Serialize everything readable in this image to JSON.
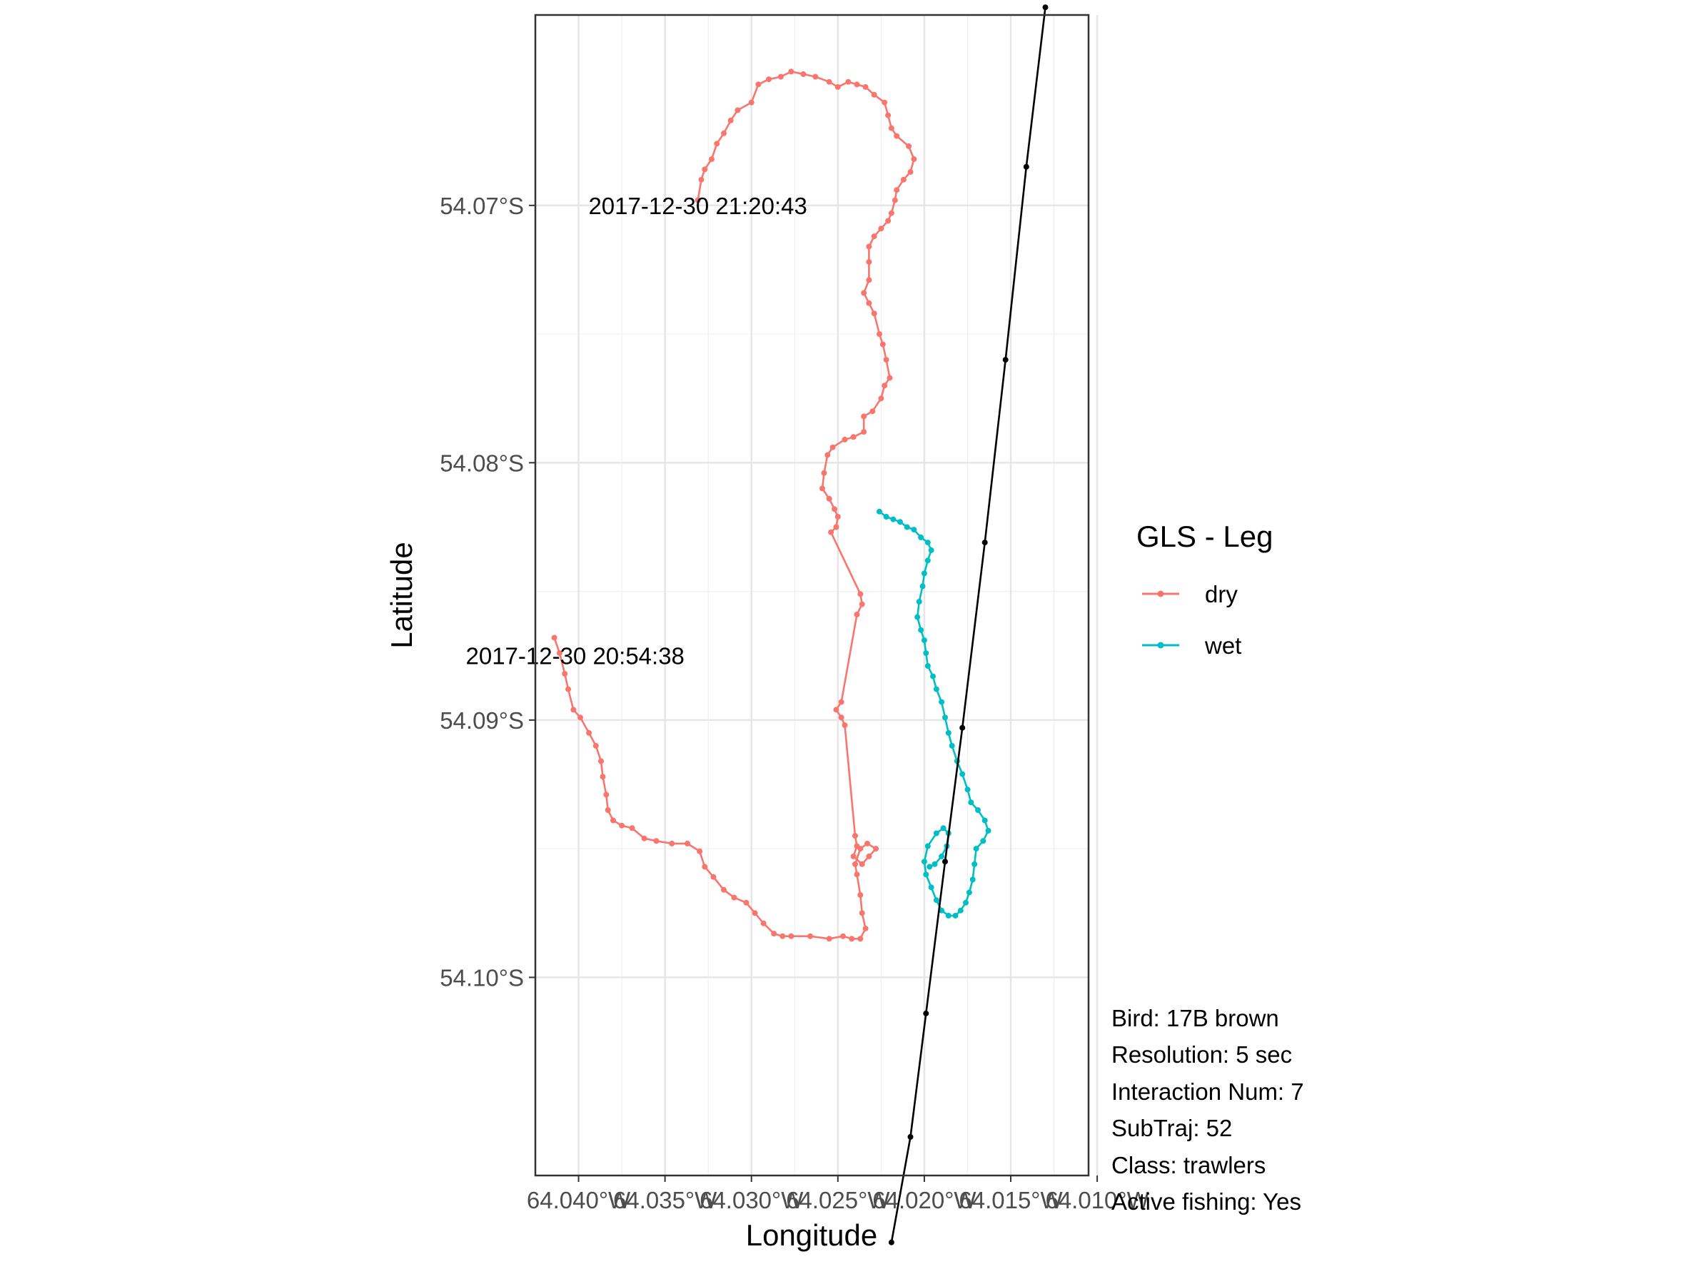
{
  "chart_data": {
    "type": "line",
    "xlabel": "Longitude",
    "ylabel": "Latitude",
    "xlim": [
      -64.0425,
      -64.0105
    ],
    "ylim": [
      -54.1077,
      -54.0626
    ],
    "x_ticks": [
      -64.04,
      -64.035,
      -64.03,
      -64.025,
      -64.02,
      -64.015,
      -64.01
    ],
    "x_tick_labels": [
      "64.040°W",
      "64.035°W",
      "64.030°W",
      "64.025°W",
      "64.020°W",
      "64.015°W",
      "64.010°W"
    ],
    "y_ticks": [
      -54.07,
      -54.08,
      -54.09,
      -54.1
    ],
    "y_tick_labels": [
      "54.07°S",
      "54.08°S",
      "54.09°S",
      "54.10°S"
    ],
    "grid": true,
    "legend": {
      "title": "GLS - Leg",
      "position": "right",
      "entries": [
        {
          "label": "dry",
          "color": "#F8766D"
        },
        {
          "label": "wet",
          "color": "#00BFC4"
        }
      ]
    },
    "annotations": [
      {
        "text": "2017-12-30 21:20:43",
        "x": -64.0331,
        "y": -54.07
      },
      {
        "text": "2017-12-30 20:54:38",
        "x": -64.0402,
        "y": -54.0875
      }
    ],
    "series": [
      {
        "name": "dry",
        "color": "#F8766D",
        "points": [
          [
            -64.0414,
            -54.0868
          ],
          [
            -64.0411,
            -54.0874
          ],
          [
            -64.0408,
            -54.0882
          ],
          [
            -64.0406,
            -54.0888
          ],
          [
            -64.0403,
            -54.0896
          ],
          [
            -64.0399,
            -54.0899
          ],
          [
            -64.0394,
            -54.0905
          ],
          [
            -64.039,
            -54.091
          ],
          [
            -64.0387,
            -54.0916
          ],
          [
            -64.0386,
            -54.0922
          ],
          [
            -64.0384,
            -54.0929
          ],
          [
            -64.0383,
            -54.0935
          ],
          [
            -64.038,
            -54.0939
          ],
          [
            -64.0375,
            -54.0941
          ],
          [
            -64.0369,
            -54.0942
          ],
          [
            -64.0362,
            -54.0946
          ],
          [
            -64.0355,
            -54.0947
          ],
          [
            -64.0346,
            -54.0948
          ],
          [
            -64.0337,
            -54.0948
          ],
          [
            -64.033,
            -54.0951
          ],
          [
            -64.0327,
            -54.0957
          ],
          [
            -64.0322,
            -54.0961
          ],
          [
            -64.0316,
            -54.0966
          ],
          [
            -64.031,
            -54.0969
          ],
          [
            -64.0303,
            -54.0971
          ],
          [
            -64.0298,
            -54.0975
          ],
          [
            -64.0293,
            -54.0979
          ],
          [
            -64.0287,
            -54.0983
          ],
          [
            -64.0282,
            -54.0984
          ],
          [
            -64.0277,
            -54.0984
          ],
          [
            -64.0266,
            -54.0984
          ],
          [
            -64.0255,
            -54.0985
          ],
          [
            -64.0247,
            -54.0984
          ],
          [
            -64.0242,
            -54.0985
          ],
          [
            -64.0237,
            -54.0985
          ],
          [
            -64.0234,
            -54.0981
          ],
          [
            -64.0236,
            -54.0975
          ],
          [
            -64.0237,
            -54.0968
          ],
          [
            -64.0239,
            -54.096
          ],
          [
            -64.024,
            -54.0956
          ],
          [
            -64.0237,
            -54.095
          ],
          [
            -64.0233,
            -54.0948
          ],
          [
            -64.0228,
            -54.095
          ],
          [
            -64.0232,
            -54.0953
          ],
          [
            -64.0236,
            -54.0956
          ],
          [
            -64.0241,
            -54.0953
          ],
          [
            -64.0239,
            -54.0949
          ],
          [
            -64.024,
            -54.0945
          ],
          [
            -64.0246,
            -54.0902
          ],
          [
            -64.0248,
            -54.0899
          ],
          [
            -64.0251,
            -54.0896
          ],
          [
            -64.0248,
            -54.0893
          ],
          [
            -64.0239,
            -54.0859
          ],
          [
            -64.0236,
            -54.0855
          ],
          [
            -64.0237,
            -54.0851
          ],
          [
            -64.0254,
            -54.0827
          ],
          [
            -64.0251,
            -54.0825
          ],
          [
            -64.025,
            -54.0821
          ],
          [
            -64.0252,
            -54.0818
          ],
          [
            -64.0255,
            -54.0814
          ],
          [
            -64.0259,
            -54.081
          ],
          [
            -64.0258,
            -54.0804
          ],
          [
            -64.0256,
            -54.0797
          ],
          [
            -64.0253,
            -54.0794
          ],
          [
            -64.0246,
            -54.0791
          ],
          [
            -64.0241,
            -54.079
          ],
          [
            -64.0235,
            -54.0788
          ],
          [
            -64.0235,
            -54.0782
          ],
          [
            -64.023,
            -54.078
          ],
          [
            -64.0225,
            -54.0775
          ],
          [
            -64.0223,
            -54.077
          ],
          [
            -64.022,
            -54.0767
          ],
          [
            -64.0222,
            -54.076
          ],
          [
            -64.0224,
            -54.0754
          ],
          [
            -64.0226,
            -54.075
          ],
          [
            -64.0229,
            -54.0742
          ],
          [
            -64.0232,
            -54.0738
          ],
          [
            -64.0235,
            -54.0734
          ],
          [
            -64.0232,
            -54.0729
          ],
          [
            -64.0232,
            -54.0722
          ],
          [
            -64.0232,
            -54.0716
          ],
          [
            -64.0229,
            -54.0712
          ],
          [
            -64.0225,
            -54.0709
          ],
          [
            -64.0221,
            -54.0706
          ],
          [
            -64.0219,
            -54.0703
          ],
          [
            -64.0217,
            -54.0698
          ],
          [
            -64.0216,
            -54.0694
          ],
          [
            -64.0212,
            -54.069
          ],
          [
            -64.0208,
            -54.0687
          ],
          [
            -64.0206,
            -54.0682
          ],
          [
            -64.0209,
            -54.0677
          ],
          [
            -64.0216,
            -54.0673
          ],
          [
            -64.0219,
            -54.067
          ],
          [
            -64.0221,
            -54.0665
          ],
          [
            -64.0223,
            -54.066
          ],
          [
            -64.0229,
            -54.0657
          ],
          [
            -64.0234,
            -54.0654
          ],
          [
            -64.0239,
            -54.0653
          ],
          [
            -64.0244,
            -54.0652
          ],
          [
            -64.025,
            -54.0654
          ],
          [
            -64.0255,
            -54.0652
          ],
          [
            -64.0263,
            -54.065
          ],
          [
            -64.027,
            -54.0649
          ],
          [
            -64.0277,
            -54.0648
          ],
          [
            -64.0283,
            -54.065
          ],
          [
            -64.029,
            -54.0651
          ],
          [
            -64.0296,
            -54.0653
          ],
          [
            -64.03,
            -54.066
          ],
          [
            -64.0308,
            -54.0663
          ],
          [
            -64.0312,
            -54.0667
          ],
          [
            -64.0316,
            -54.0672
          ],
          [
            -64.032,
            -54.0676
          ],
          [
            -64.0323,
            -54.0682
          ],
          [
            -64.0327,
            -54.0686
          ],
          [
            -64.0329,
            -54.069
          ],
          [
            -64.0331,
            -54.0698
          ]
        ]
      },
      {
        "name": "wet",
        "color": "#00BFC4",
        "points": [
          [
            -64.0226,
            -54.0819
          ],
          [
            -64.0222,
            -54.0821
          ],
          [
            -64.0218,
            -54.0822
          ],
          [
            -64.0214,
            -54.0823
          ],
          [
            -64.021,
            -54.0825
          ],
          [
            -64.0206,
            -54.0826
          ],
          [
            -64.0202,
            -54.0829
          ],
          [
            -64.0198,
            -54.0831
          ],
          [
            -64.0196,
            -54.0834
          ],
          [
            -64.0198,
            -54.0838
          ],
          [
            -64.02,
            -54.0843
          ],
          [
            -64.0201,
            -54.0848
          ],
          [
            -64.0203,
            -54.0854
          ],
          [
            -64.0204,
            -54.086
          ],
          [
            -64.0202,
            -54.0865
          ],
          [
            -64.02,
            -54.0869
          ],
          [
            -64.0199,
            -54.0874
          ],
          [
            -64.0198,
            -54.0879
          ],
          [
            -64.0195,
            -54.0883
          ],
          [
            -64.0193,
            -54.0888
          ],
          [
            -64.019,
            -54.0893
          ],
          [
            -64.0188,
            -54.0899
          ],
          [
            -64.0186,
            -54.0905
          ],
          [
            -64.0184,
            -54.091
          ],
          [
            -64.0181,
            -54.0916
          ],
          [
            -64.0178,
            -54.0921
          ],
          [
            -64.0175,
            -54.0927
          ],
          [
            -64.0173,
            -54.0932
          ],
          [
            -64.0169,
            -54.0935
          ],
          [
            -64.0165,
            -54.0939
          ],
          [
            -64.0163,
            -54.0943
          ],
          [
            -64.0166,
            -54.0947
          ],
          [
            -64.017,
            -54.095
          ],
          [
            -64.0171,
            -54.0956
          ],
          [
            -64.0172,
            -54.0962
          ],
          [
            -64.0174,
            -54.0967
          ],
          [
            -64.0176,
            -54.0971
          ],
          [
            -64.0179,
            -54.0974
          ],
          [
            -64.0182,
            -54.0976
          ],
          [
            -64.0186,
            -54.0976
          ],
          [
            -64.019,
            -54.0974
          ],
          [
            -64.0193,
            -54.097
          ],
          [
            -64.0196,
            -54.0965
          ],
          [
            -64.0199,
            -54.096
          ],
          [
            -64.02,
            -54.0955
          ],
          [
            -64.0198,
            -54.0949
          ],
          [
            -64.0193,
            -54.0944
          ],
          [
            -64.0189,
            -54.0942
          ],
          [
            -64.0186,
            -54.0944
          ],
          [
            -64.0187,
            -54.0949
          ],
          [
            -64.019,
            -54.0953
          ],
          [
            -64.0194,
            -54.0956
          ],
          [
            -64.0197,
            -54.0957
          ]
        ]
      },
      {
        "name": "",
        "color": "#000000",
        "points": [
          [
            -64.013,
            -54.0623
          ],
          [
            -64.0141,
            -54.0685
          ],
          [
            -64.0153,
            -54.076
          ],
          [
            -64.0165,
            -54.0831
          ],
          [
            -64.0178,
            -54.0903
          ],
          [
            -64.0188,
            -54.0955
          ],
          [
            -64.0199,
            -54.1014
          ],
          [
            -64.0208,
            -54.1062
          ],
          [
            -64.0219,
            -54.1103
          ]
        ]
      }
    ]
  },
  "info_lines": [
    "Bird: 17B brown",
    "Resolution: 5 sec",
    "Interaction Num: 7",
    "SubTraj: 52",
    "Class: trawlers",
    "Active fishing: Yes"
  ]
}
